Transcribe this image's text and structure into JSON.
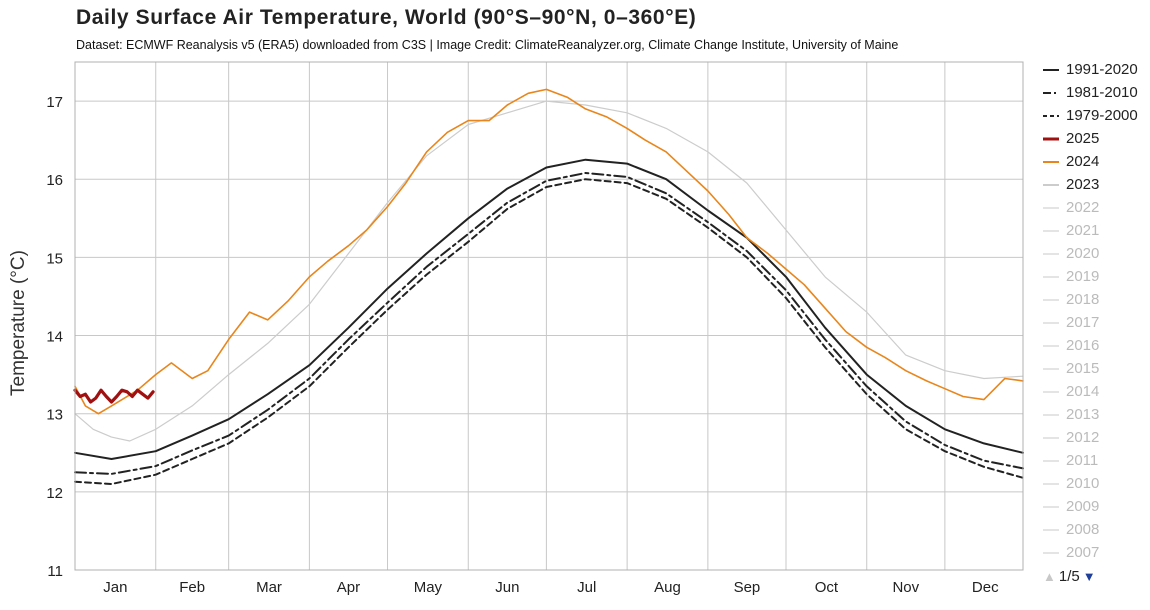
{
  "header": {
    "title": "Daily Surface Air Temperature, World (90°S–90°N, 0–360°E)",
    "subtitle": "Dataset: ECMWF Reanalysis v5 (ERA5) downloaded from C3S | Image Credit: ClimateReanalyzer.org, Climate Change Institute, University of Maine"
  },
  "legend": {
    "items": [
      {
        "label": "1991-2020",
        "color": "#222222",
        "style": "solid",
        "active": true
      },
      {
        "label": "1981-2010",
        "color": "#222222",
        "style": "dashdot",
        "active": true
      },
      {
        "label": "1979-2000",
        "color": "#222222",
        "style": "dashed",
        "active": true
      },
      {
        "label": "2025",
        "color": "#a01010",
        "style": "thick",
        "active": true
      },
      {
        "label": "2024",
        "color": "#e8861c",
        "style": "solid",
        "active": true
      },
      {
        "label": "2023",
        "color": "#cccccc",
        "style": "solid",
        "active": true
      },
      {
        "label": "2022",
        "color": "#e4e4e4",
        "style": "solid",
        "active": false
      },
      {
        "label": "2021",
        "color": "#e4e4e4",
        "style": "solid",
        "active": false
      },
      {
        "label": "2020",
        "color": "#e4e4e4",
        "style": "solid",
        "active": false
      },
      {
        "label": "2019",
        "color": "#e4e4e4",
        "style": "solid",
        "active": false
      },
      {
        "label": "2018",
        "color": "#e4e4e4",
        "style": "solid",
        "active": false
      },
      {
        "label": "2017",
        "color": "#e4e4e4",
        "style": "solid",
        "active": false
      },
      {
        "label": "2016",
        "color": "#e4e4e4",
        "style": "solid",
        "active": false
      },
      {
        "label": "2015",
        "color": "#e4e4e4",
        "style": "solid",
        "active": false
      },
      {
        "label": "2014",
        "color": "#e4e4e4",
        "style": "solid",
        "active": false
      },
      {
        "label": "2013",
        "color": "#e4e4e4",
        "style": "solid",
        "active": false
      },
      {
        "label": "2012",
        "color": "#e4e4e4",
        "style": "solid",
        "active": false
      },
      {
        "label": "2011",
        "color": "#e4e4e4",
        "style": "solid",
        "active": false
      },
      {
        "label": "2010",
        "color": "#e4e4e4",
        "style": "solid",
        "active": false
      },
      {
        "label": "2009",
        "color": "#e4e4e4",
        "style": "solid",
        "active": false
      },
      {
        "label": "2008",
        "color": "#e4e4e4",
        "style": "solid",
        "active": false
      },
      {
        "label": "2007",
        "color": "#e4e4e4",
        "style": "solid",
        "active": false
      }
    ],
    "pager": {
      "up_icon": "triangle-up",
      "down_icon": "triangle-down",
      "text": "1/5"
    }
  },
  "chart_data": {
    "type": "line",
    "title": "Daily Surface Air Temperature, World (90°S–90°N, 0–360°E)",
    "ylabel": "Temperature (°C)",
    "xlabel": "",
    "ylim": [
      11,
      17.5
    ],
    "yticks": [
      11,
      12,
      13,
      14,
      15,
      16,
      17
    ],
    "xlim": [
      1,
      365
    ],
    "month_labels": [
      "Jan",
      "Feb",
      "Mar",
      "Apr",
      "May",
      "Jun",
      "Jul",
      "Aug",
      "Sep",
      "Oct",
      "Nov",
      "Dec"
    ],
    "month_start_days": [
      1,
      32,
      60,
      91,
      121,
      152,
      182,
      213,
      244,
      274,
      305,
      335
    ],
    "grid": true,
    "legend_position": "right",
    "series": [
      {
        "name": "1991-2020",
        "color": "#222222",
        "style": "solid",
        "x": [
          1,
          15,
          32,
          46,
          60,
          75,
          91,
          106,
          121,
          136,
          152,
          167,
          182,
          197,
          213,
          228,
          244,
          259,
          274,
          289,
          305,
          320,
          335,
          350,
          365
        ],
        "y": [
          12.5,
          12.42,
          12.52,
          12.72,
          12.93,
          13.25,
          13.62,
          14.1,
          14.6,
          15.05,
          15.5,
          15.88,
          16.15,
          16.25,
          16.2,
          16.0,
          15.6,
          15.25,
          14.75,
          14.1,
          13.5,
          13.1,
          12.8,
          12.62,
          12.5
        ]
      },
      {
        "name": "1981-2010",
        "color": "#222222",
        "style": "dashdot",
        "x": [
          1,
          15,
          32,
          46,
          60,
          75,
          91,
          106,
          121,
          136,
          152,
          167,
          182,
          197,
          213,
          228,
          244,
          259,
          274,
          289,
          305,
          320,
          335,
          350,
          365
        ],
        "y": [
          12.25,
          12.23,
          12.33,
          12.53,
          12.72,
          13.05,
          13.45,
          13.95,
          14.42,
          14.88,
          15.3,
          15.7,
          15.98,
          16.08,
          16.03,
          15.82,
          15.45,
          15.08,
          14.58,
          13.95,
          13.35,
          12.9,
          12.6,
          12.4,
          12.3
        ]
      },
      {
        "name": "1979-2000",
        "color": "#222222",
        "style": "dashed",
        "x": [
          1,
          15,
          32,
          46,
          60,
          75,
          91,
          106,
          121,
          136,
          152,
          167,
          182,
          197,
          213,
          228,
          244,
          259,
          274,
          289,
          305,
          320,
          335,
          350,
          365
        ],
        "y": [
          12.13,
          12.1,
          12.22,
          12.42,
          12.62,
          12.95,
          13.35,
          13.85,
          14.33,
          14.78,
          15.2,
          15.62,
          15.9,
          16.0,
          15.95,
          15.75,
          15.38,
          15.0,
          14.48,
          13.85,
          13.25,
          12.8,
          12.52,
          12.32,
          12.18
        ]
      },
      {
        "name": "2023",
        "color": "#cccccc",
        "style": "solid",
        "x": [
          1,
          8,
          15,
          22,
          32,
          46,
          60,
          75,
          91,
          106,
          121,
          136,
          152,
          167,
          182,
          197,
          213,
          228,
          244,
          259,
          274,
          289,
          305,
          320,
          335,
          350,
          365
        ],
        "y": [
          13.0,
          12.8,
          12.7,
          12.65,
          12.8,
          13.1,
          13.5,
          13.9,
          14.4,
          15.05,
          15.7,
          16.3,
          16.7,
          16.85,
          17.0,
          16.95,
          16.85,
          16.65,
          16.35,
          15.95,
          15.35,
          14.75,
          14.3,
          13.75,
          13.55,
          13.45,
          13.48
        ]
      },
      {
        "name": "2024",
        "color": "#e8861c",
        "style": "solid",
        "x": [
          1,
          5,
          10,
          15,
          20,
          25,
          32,
          38,
          46,
          52,
          60,
          68,
          75,
          83,
          91,
          98,
          106,
          113,
          121,
          128,
          136,
          144,
          152,
          160,
          167,
          175,
          182,
          190,
          197,
          205,
          213,
          220,
          228,
          236,
          244,
          252,
          259,
          267,
          274,
          281,
          289,
          297,
          305,
          312,
          320,
          328,
          335,
          342,
          350,
          358,
          365
        ],
        "y": [
          13.35,
          13.1,
          13.0,
          13.1,
          13.2,
          13.3,
          13.5,
          13.65,
          13.45,
          13.55,
          13.95,
          14.3,
          14.2,
          14.45,
          14.75,
          14.95,
          15.15,
          15.35,
          15.65,
          15.95,
          16.35,
          16.6,
          16.75,
          16.75,
          16.95,
          17.1,
          17.15,
          17.05,
          16.9,
          16.8,
          16.65,
          16.5,
          16.35,
          16.1,
          15.85,
          15.55,
          15.25,
          15.05,
          14.85,
          14.65,
          14.35,
          14.05,
          13.85,
          13.72,
          13.55,
          13.42,
          13.32,
          13.22,
          13.18,
          13.45,
          13.42
        ]
      },
      {
        "name": "2025",
        "color": "#a01010",
        "style": "thick",
        "x": [
          1,
          3,
          5,
          7,
          9,
          11,
          13,
          15,
          17,
          19,
          21,
          23,
          25,
          27,
          29,
          31
        ],
        "y": [
          13.3,
          13.22,
          13.25,
          13.15,
          13.2,
          13.3,
          13.22,
          13.15,
          13.22,
          13.3,
          13.28,
          13.22,
          13.3,
          13.25,
          13.2,
          13.28
        ]
      }
    ]
  }
}
